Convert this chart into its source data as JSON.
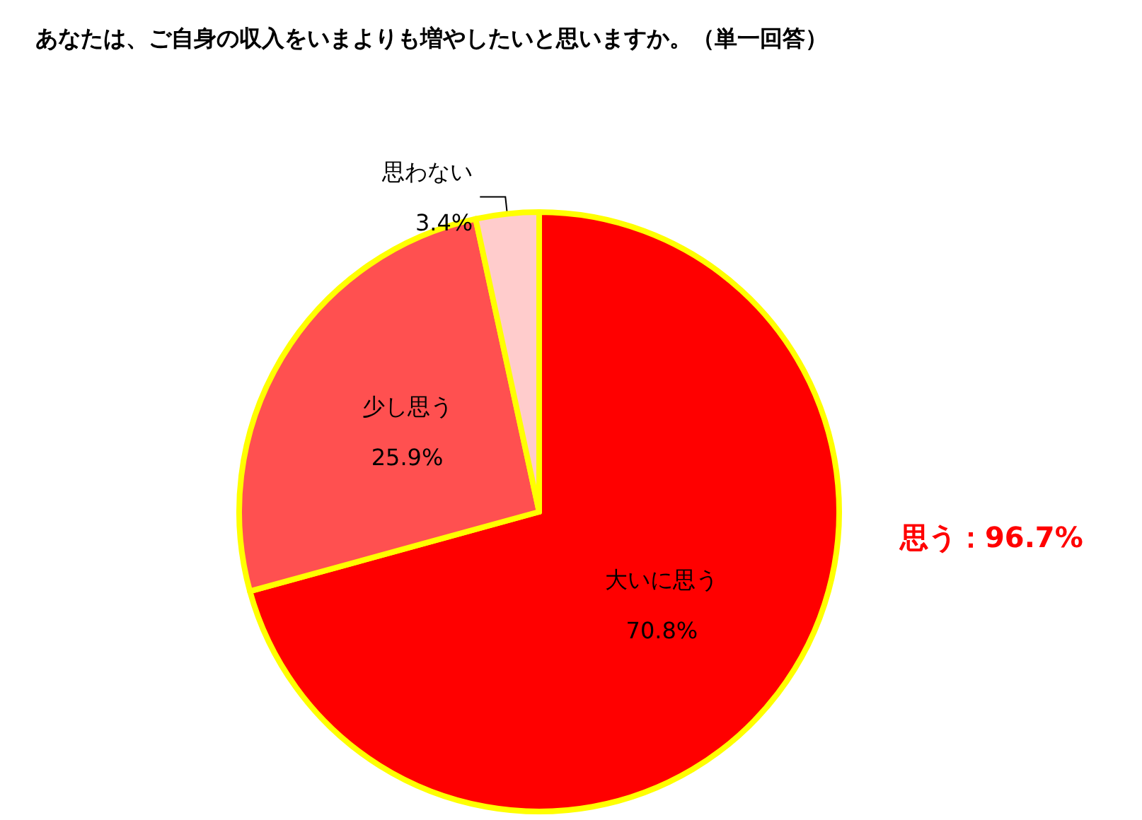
{
  "chart_data": {
    "type": "pie",
    "title": "あなたは、ご自身の収入をいまよりも増やしたいと思いますか。（単一回答）",
    "categories": [
      "大いに思う",
      "少し思う",
      "思わない"
    ],
    "values": [
      70.8,
      25.9,
      3.4
    ],
    "value_labels": [
      "70.8%",
      "25.9%",
      "3.4%"
    ],
    "colors": [
      "#ff0000",
      "#ff5050",
      "#ffcccc"
    ],
    "annotations": [
      "思う：96.7%"
    ],
    "legend": false
  }
}
